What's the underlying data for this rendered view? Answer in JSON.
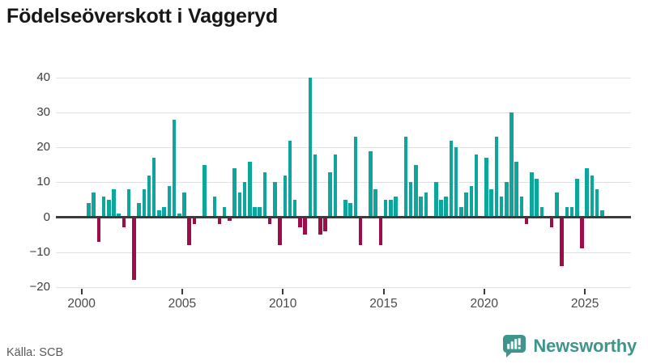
{
  "title": "Födelseöverskott i Vaggeryd",
  "source": "Källa: SCB",
  "logo": {
    "text": "Newsworthy",
    "color": "#3f948c",
    "icon": "newsworthy-bar-chart-speech-bubble"
  },
  "chart_data": {
    "type": "bar",
    "title": "Födelseöverskott i Vaggeryd",
    "xlabel": "",
    "ylabel": "",
    "x_tick_labels": [
      "2000",
      "2005",
      "2010",
      "2015",
      "2020",
      "2025"
    ],
    "y_ticks": [
      40,
      30,
      20,
      10,
      0,
      -10,
      -20
    ],
    "ylim": [
      -20,
      40
    ],
    "grid": "horizontal",
    "legend": "none",
    "frequency": "quarterly",
    "colors": {
      "positive": "#0ca69c",
      "negative": "#9e0c49"
    },
    "series": [
      {
        "year": 2000,
        "q": [
          0,
          4,
          7,
          -7
        ]
      },
      {
        "year": 2001,
        "q": [
          6,
          5,
          8,
          1
        ]
      },
      {
        "year": 2002,
        "q": [
          -3,
          8,
          -18,
          4
        ]
      },
      {
        "year": 2003,
        "q": [
          8,
          12,
          17,
          2
        ]
      },
      {
        "year": 2004,
        "q": [
          3,
          9,
          28,
          1
        ]
      },
      {
        "year": 2005,
        "q": [
          7,
          -8,
          -2,
          0
        ]
      },
      {
        "year": 2006,
        "q": [
          15,
          0,
          6,
          -2
        ]
      },
      {
        "year": 2007,
        "q": [
          3,
          -1,
          14,
          7
        ]
      },
      {
        "year": 2008,
        "q": [
          10,
          16,
          3,
          3
        ]
      },
      {
        "year": 2009,
        "q": [
          13,
          -2,
          10,
          -8
        ]
      },
      {
        "year": 2010,
        "q": [
          12,
          22,
          5,
          -3
        ]
      },
      {
        "year": 2011,
        "q": [
          -5,
          40,
          18,
          -5
        ]
      },
      {
        "year": 2012,
        "q": [
          -4,
          13,
          18,
          0
        ]
      },
      {
        "year": 2013,
        "q": [
          5,
          4,
          23,
          -8
        ]
      },
      {
        "year": 2014,
        "q": [
          0,
          19,
          8,
          -8
        ]
      },
      {
        "year": 2015,
        "q": [
          5,
          5,
          6,
          0
        ]
      },
      {
        "year": 2016,
        "q": [
          23,
          10,
          15,
          6
        ]
      },
      {
        "year": 2017,
        "q": [
          7,
          0,
          10,
          5
        ]
      },
      {
        "year": 2018,
        "q": [
          6,
          22,
          20,
          3
        ]
      },
      {
        "year": 2019,
        "q": [
          7,
          9,
          18,
          0
        ]
      },
      {
        "year": 2020,
        "q": [
          17,
          8,
          23,
          6
        ]
      },
      {
        "year": 2021,
        "q": [
          10,
          30,
          16,
          6
        ]
      },
      {
        "year": 2022,
        "q": [
          -2,
          13,
          11,
          3
        ]
      },
      {
        "year": 2023,
        "q": [
          0,
          -3,
          7,
          -14
        ]
      },
      {
        "year": 2024,
        "q": [
          3,
          3,
          11,
          -9
        ]
      },
      {
        "year": 2025,
        "q": [
          14,
          12,
          8,
          2
        ]
      }
    ]
  }
}
